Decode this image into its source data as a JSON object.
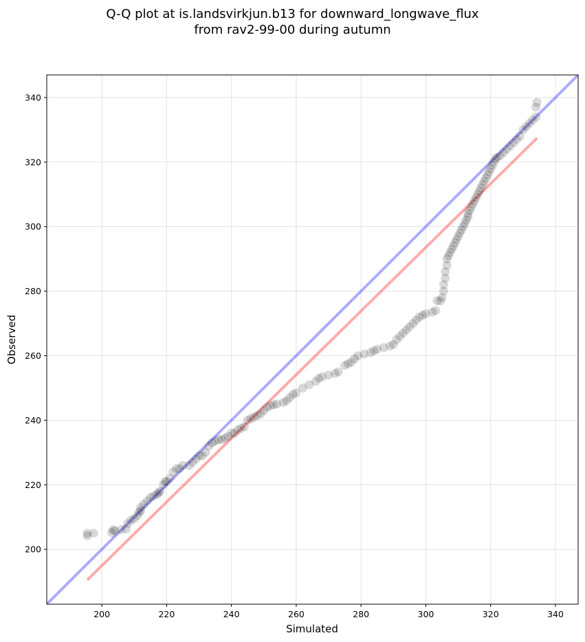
{
  "chart_data": {
    "type": "scatter",
    "title": [
      "Q-Q plot at is.landsvirkjun.b13 for downward_longwave_flux",
      "from rav2-99-00 during autumn"
    ],
    "xlabel": "Simulated",
    "ylabel": "Observed",
    "xlim": [
      183,
      347
    ],
    "ylim": [
      183,
      347
    ],
    "xticks": [
      200,
      220,
      240,
      260,
      280,
      300,
      320,
      340
    ],
    "yticks": [
      200,
      220,
      240,
      260,
      280,
      300,
      320,
      340
    ],
    "grid": true,
    "reference_line": {
      "color": "#0000ff",
      "alpha": 0.33,
      "x": [
        183,
        347
      ],
      "y": [
        183,
        347
      ]
    },
    "fit_line": {
      "color": "#ff0000",
      "alpha": 0.33,
      "x": [
        195.5,
        334.3
      ],
      "y": [
        190.5,
        327.4
      ]
    },
    "point_color": "#000000",
    "point_alpha": 0.15,
    "points": [
      [
        195.5,
        204.2
      ],
      [
        195.5,
        205.0
      ],
      [
        197.5,
        205.0
      ],
      [
        203,
        205.2
      ],
      [
        203.5,
        206
      ],
      [
        204,
        205.8
      ],
      [
        206,
        206.1
      ],
      [
        207.5,
        206.3
      ],
      [
        208,
        208
      ],
      [
        209,
        209
      ],
      [
        210,
        209.5
      ],
      [
        211,
        210.5
      ],
      [
        211.5,
        211.5
      ],
      [
        212,
        212
      ],
      [
        212,
        213
      ],
      [
        213,
        214
      ],
      [
        214,
        215
      ],
      [
        215,
        216
      ],
      [
        216,
        216.5
      ],
      [
        217,
        217
      ],
      [
        217.5,
        217.5
      ],
      [
        218,
        218
      ],
      [
        219,
        220
      ],
      [
        219.5,
        221
      ],
      [
        220,
        221
      ],
      [
        221,
        222
      ],
      [
        222,
        224
      ],
      [
        223,
        225
      ],
      [
        224,
        225
      ],
      [
        225,
        226
      ],
      [
        227,
        226
      ],
      [
        228,
        227
      ],
      [
        229,
        228
      ],
      [
        230,
        229
      ],
      [
        231,
        229
      ],
      [
        232,
        230
      ],
      [
        233,
        232
      ],
      [
        234,
        233
      ],
      [
        235,
        233.5
      ],
      [
        236,
        234
      ],
      [
        237,
        234
      ],
      [
        238,
        234.5
      ],
      [
        239,
        235
      ],
      [
        240,
        236
      ],
      [
        241,
        236
      ],
      [
        242,
        237
      ],
      [
        243,
        237.5
      ],
      [
        244,
        238
      ],
      [
        245,
        240
      ],
      [
        246,
        240.5
      ],
      [
        247,
        241
      ],
      [
        248,
        241.5
      ],
      [
        249,
        242
      ],
      [
        250,
        243
      ],
      [
        251,
        244
      ],
      [
        252,
        244.5
      ],
      [
        253,
        244.8
      ],
      [
        254,
        245
      ],
      [
        256,
        245.5
      ],
      [
        257,
        246
      ],
      [
        258,
        247
      ],
      [
        259,
        248
      ],
      [
        260,
        248.5
      ],
      [
        262,
        250
      ],
      [
        264,
        251
      ],
      [
        266,
        252
      ],
      [
        267,
        253
      ],
      [
        268,
        253.5
      ],
      [
        270,
        254
      ],
      [
        272,
        254.5
      ],
      [
        273,
        255
      ],
      [
        275,
        257
      ],
      [
        276,
        257.5
      ],
      [
        277,
        258
      ],
      [
        278,
        259
      ],
      [
        279,
        260
      ],
      [
        281,
        260.5
      ],
      [
        283,
        261
      ],
      [
        284,
        261.5
      ],
      [
        285,
        262
      ],
      [
        287,
        262.5
      ],
      [
        289,
        263
      ],
      [
        290,
        263.5
      ],
      [
        291,
        265
      ],
      [
        292,
        266
      ],
      [
        293,
        267
      ],
      [
        294,
        268
      ],
      [
        295,
        269
      ],
      [
        296,
        270
      ],
      [
        297,
        271
      ],
      [
        298,
        272
      ],
      [
        299,
        272.5
      ],
      [
        300,
        273
      ],
      [
        302,
        273.5
      ],
      [
        303,
        274
      ],
      [
        303.5,
        277
      ],
      [
        304.5,
        277
      ],
      [
        305,
        278
      ],
      [
        305.5,
        280
      ],
      [
        305.5,
        282
      ],
      [
        306,
        284
      ],
      [
        306,
        286
      ],
      [
        306.5,
        288
      ],
      [
        306.5,
        290
      ],
      [
        307,
        291
      ],
      [
        307.5,
        292
      ],
      [
        308,
        293
      ],
      [
        308.5,
        294
      ],
      [
        309,
        295
      ],
      [
        309.5,
        296
      ],
      [
        310,
        297
      ],
      [
        310.5,
        298
      ],
      [
        311,
        299
      ],
      [
        311.5,
        300
      ],
      [
        312,
        301
      ],
      [
        312.5,
        302
      ],
      [
        313,
        303
      ],
      [
        313,
        304
      ],
      [
        313.5,
        305
      ],
      [
        314,
        306
      ],
      [
        314.5,
        307
      ],
      [
        315,
        308
      ],
      [
        315.5,
        309
      ],
      [
        316,
        310
      ],
      [
        316.5,
        311
      ],
      [
        317,
        312
      ],
      [
        317.5,
        313
      ],
      [
        318,
        314
      ],
      [
        318.5,
        315
      ],
      [
        319,
        316
      ],
      [
        319.5,
        317
      ],
      [
        320,
        318
      ],
      [
        320.5,
        319
      ],
      [
        321,
        320
      ],
      [
        321.5,
        321
      ],
      [
        322,
        321.5
      ],
      [
        323,
        322
      ],
      [
        324,
        323
      ],
      [
        325,
        324
      ],
      [
        326,
        325
      ],
      [
        327,
        326
      ],
      [
        328,
        327
      ],
      [
        329,
        328
      ],
      [
        330,
        330
      ],
      [
        331,
        331
      ],
      [
        332,
        332
      ],
      [
        333,
        333
      ],
      [
        334,
        334
      ],
      [
        334,
        337
      ],
      [
        334.3,
        338.5
      ]
    ]
  }
}
